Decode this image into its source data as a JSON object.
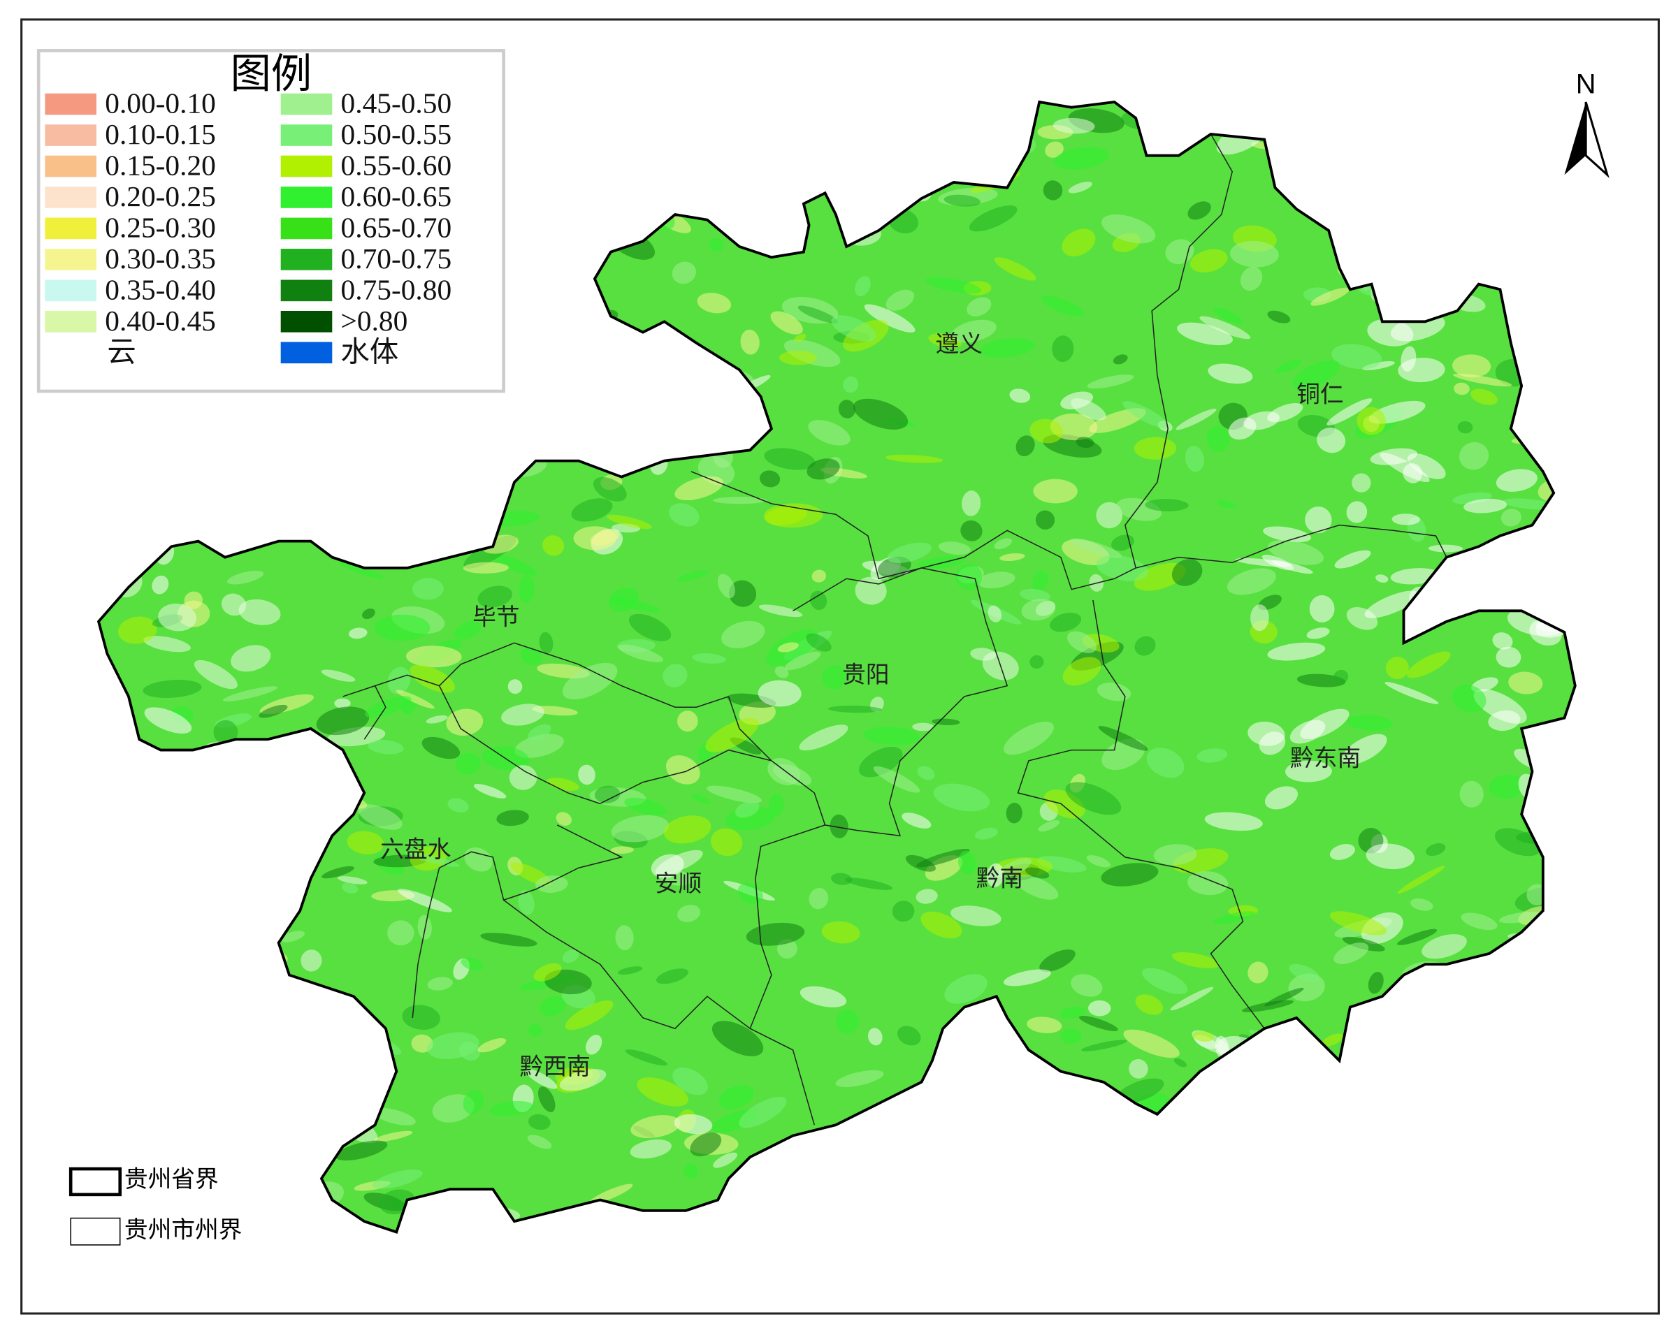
{
  "legend": {
    "title": "图例",
    "items": [
      {
        "label": "0.00-0.10",
        "color": "#f59a80"
      },
      {
        "label": "0.10-0.15",
        "color": "#f8bca2"
      },
      {
        "label": "0.15-0.20",
        "color": "#fac08a"
      },
      {
        "label": "0.20-0.25",
        "color": "#fde3cc"
      },
      {
        "label": "0.25-0.30",
        "color": "#f0f03a"
      },
      {
        "label": "0.30-0.35",
        "color": "#f5f590"
      },
      {
        "label": "0.35-0.40",
        "color": "#c8f8f0"
      },
      {
        "label": "0.40-0.45",
        "color": "#d8f8a8"
      },
      {
        "label": "云",
        "color": "#ffffff"
      },
      {
        "label": "0.45-0.50",
        "color": "#a0f090"
      },
      {
        "label": "0.50-0.55",
        "color": "#78f078"
      },
      {
        "label": "0.55-0.60",
        "color": "#b0f000"
      },
      {
        "label": "0.60-0.65",
        "color": "#30f030"
      },
      {
        "label": "0.65-0.70",
        "color": "#38e018"
      },
      {
        "label": "0.70-0.75",
        "color": "#20b020"
      },
      {
        "label": "0.75-0.80",
        "color": "#108010"
      },
      {
        "label": ">0.80",
        "color": "#005000"
      },
      {
        "label": "水体",
        "color": "#0060e0"
      }
    ]
  },
  "north": "N",
  "regions": [
    "遵义",
    "铜仁",
    "毕节",
    "贵阳",
    "黔东南",
    "六盘水",
    "安顺",
    "黔南",
    "黔西南"
  ],
  "boundaries": [
    "贵州省界",
    "贵州市州界"
  ]
}
